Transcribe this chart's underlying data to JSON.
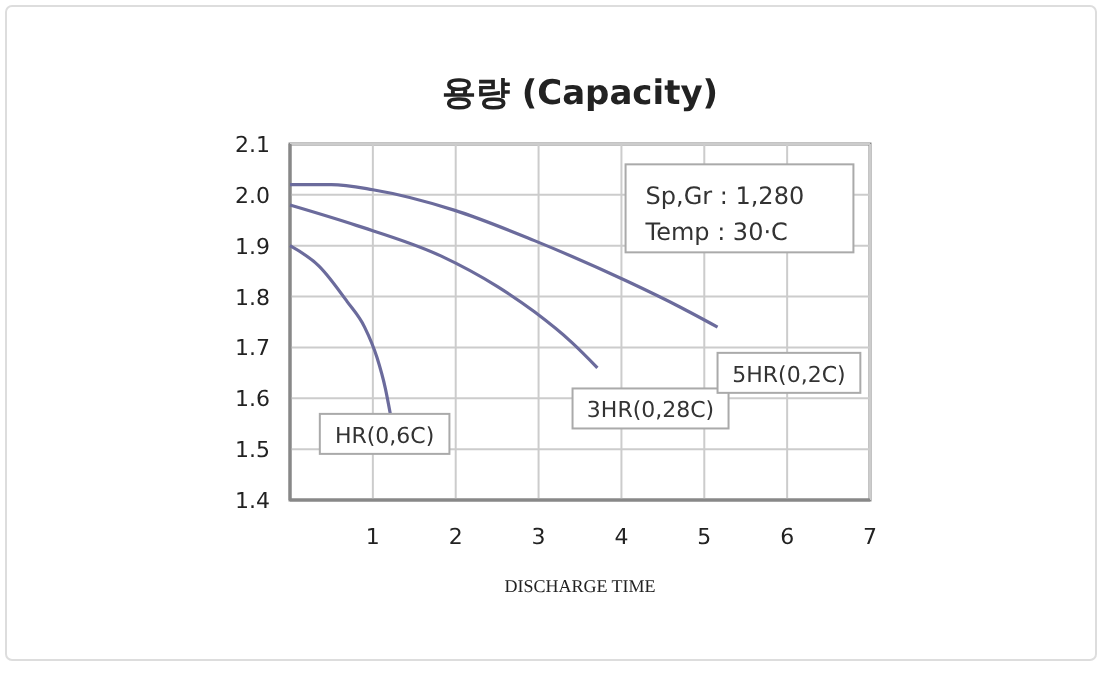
{
  "chart_data": {
    "type": "line",
    "title": "용량 (Capacity)",
    "xlabel": "DISCHARGE TIME",
    "xlim": [
      0,
      7
    ],
    "xticks": [
      {
        "value": 0,
        "label": null
      },
      1,
      2,
      3,
      4,
      5,
      6,
      7
    ],
    "ylim": [
      1.4,
      2.1
    ],
    "yticks": [
      1.4,
      1.5,
      1.6,
      1.7,
      1.8,
      1.9,
      {
        "value": 2,
        "label": "2.0"
      },
      2.1
    ],
    "grid": true,
    "marker": "none",
    "line_style": "solid",
    "annotations": [
      "Sp,Gr : 1,280",
      "Temp : 30·C"
    ],
    "series": [
      {
        "name": "HR(0,6C)",
        "color": "#6b6b9c",
        "x": [
          0,
          0.35,
          0.69,
          0.9,
          1.05,
          1.15,
          1.21
        ],
        "values": [
          1.9,
          1.86,
          1.79,
          1.74,
          1.68,
          1.62,
          1.57
        ]
      },
      {
        "name": "3HR(0,28C)",
        "color": "#6b6b9c",
        "x": [
          0,
          0.8,
          1.82,
          2.5,
          2.95,
          3.4,
          3.71
        ],
        "values": [
          1.98,
          1.94,
          1.88,
          1.82,
          1.77,
          1.71,
          1.66
        ]
      },
      {
        "name": "5HR(0,2C)",
        "color": "#6b6b9c",
        "x": [
          0,
          0.5,
          1.0,
          1.98,
          2.95,
          4.07,
          4.7,
          5.16
        ],
        "values": [
          2.02,
          2.02,
          2.01,
          1.97,
          1.91,
          1.83,
          1.78,
          1.74
        ]
      }
    ]
  }
}
